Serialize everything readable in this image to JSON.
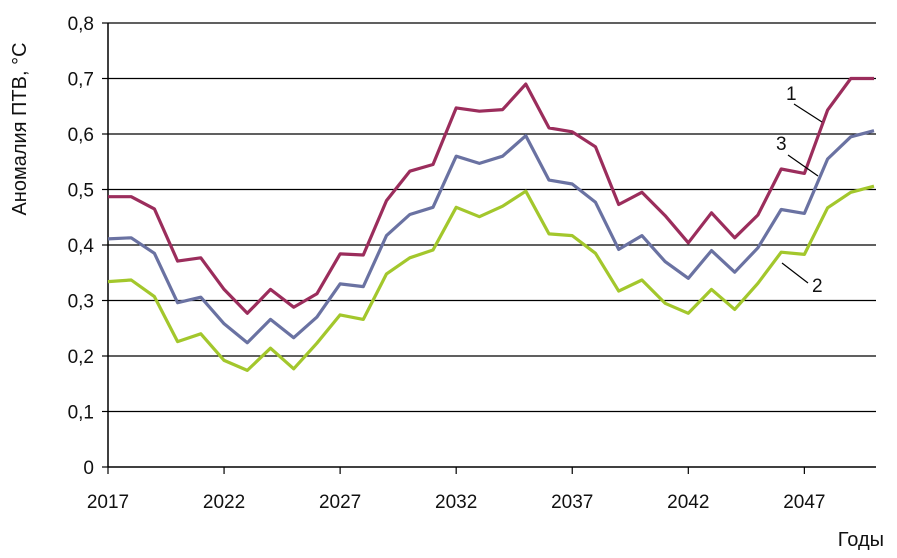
{
  "chart_data": {
    "type": "line",
    "title": "",
    "xlabel": "Годы",
    "ylabel": "Аномалия ПТВ, °С",
    "x": [
      2017,
      2018,
      2019,
      2020,
      2021,
      2022,
      2023,
      2024,
      2025,
      2026,
      2027,
      2028,
      2029,
      2030,
      2031,
      2032,
      2033,
      2034,
      2035,
      2036,
      2037,
      2038,
      2039,
      2040,
      2041,
      2042,
      2043,
      2044,
      2045,
      2046,
      2047,
      2048,
      2049,
      2050
    ],
    "xticks": [
      "2017",
      "2022",
      "2027",
      "2032",
      "2037",
      "2042",
      "2047"
    ],
    "yticks": [
      "0",
      "0,1",
      "0,2",
      "0,3",
      "0,4",
      "0,5",
      "0,6",
      "0,7",
      "0,8"
    ],
    "ylim": [
      0,
      0.8
    ],
    "grid": true,
    "legend": "none",
    "series": [
      {
        "name": "1",
        "color": "#9b2d5c",
        "values": [
          0.487,
          0.487,
          0.465,
          0.371,
          0.377,
          0.32,
          0.277,
          0.32,
          0.288,
          0.312,
          0.384,
          0.382,
          0.48,
          0.533,
          0.545,
          0.647,
          0.641,
          0.644,
          0.69,
          0.611,
          0.604,
          0.577,
          0.473,
          0.495,
          0.453,
          0.404,
          0.458,
          0.413,
          0.454,
          0.537,
          0.529,
          0.643,
          0.7,
          0.7
        ]
      },
      {
        "name": "3",
        "color": "#6a72a2",
        "values": [
          0.411,
          0.413,
          0.385,
          0.296,
          0.306,
          0.258,
          0.224,
          0.266,
          0.233,
          0.27,
          0.33,
          0.325,
          0.417,
          0.455,
          0.468,
          0.56,
          0.547,
          0.56,
          0.597,
          0.517,
          0.51,
          0.477,
          0.392,
          0.417,
          0.37,
          0.34,
          0.39,
          0.351,
          0.395,
          0.464,
          0.457,
          0.555,
          0.595,
          0.606
        ]
      },
      {
        "name": "2",
        "color": "#a3c72c",
        "values": [
          0.334,
          0.337,
          0.307,
          0.226,
          0.24,
          0.192,
          0.174,
          0.214,
          0.177,
          0.223,
          0.274,
          0.266,
          0.348,
          0.377,
          0.391,
          0.468,
          0.451,
          0.47,
          0.497,
          0.42,
          0.417,
          0.385,
          0.317,
          0.337,
          0.295,
          0.277,
          0.32,
          0.284,
          0.331,
          0.387,
          0.383,
          0.467,
          0.495,
          0.506
        ]
      }
    ],
    "annotations": [
      {
        "text": "1",
        "series": "1"
      },
      {
        "text": "3",
        "series": "3"
      },
      {
        "text": "2",
        "series": "2"
      }
    ]
  }
}
